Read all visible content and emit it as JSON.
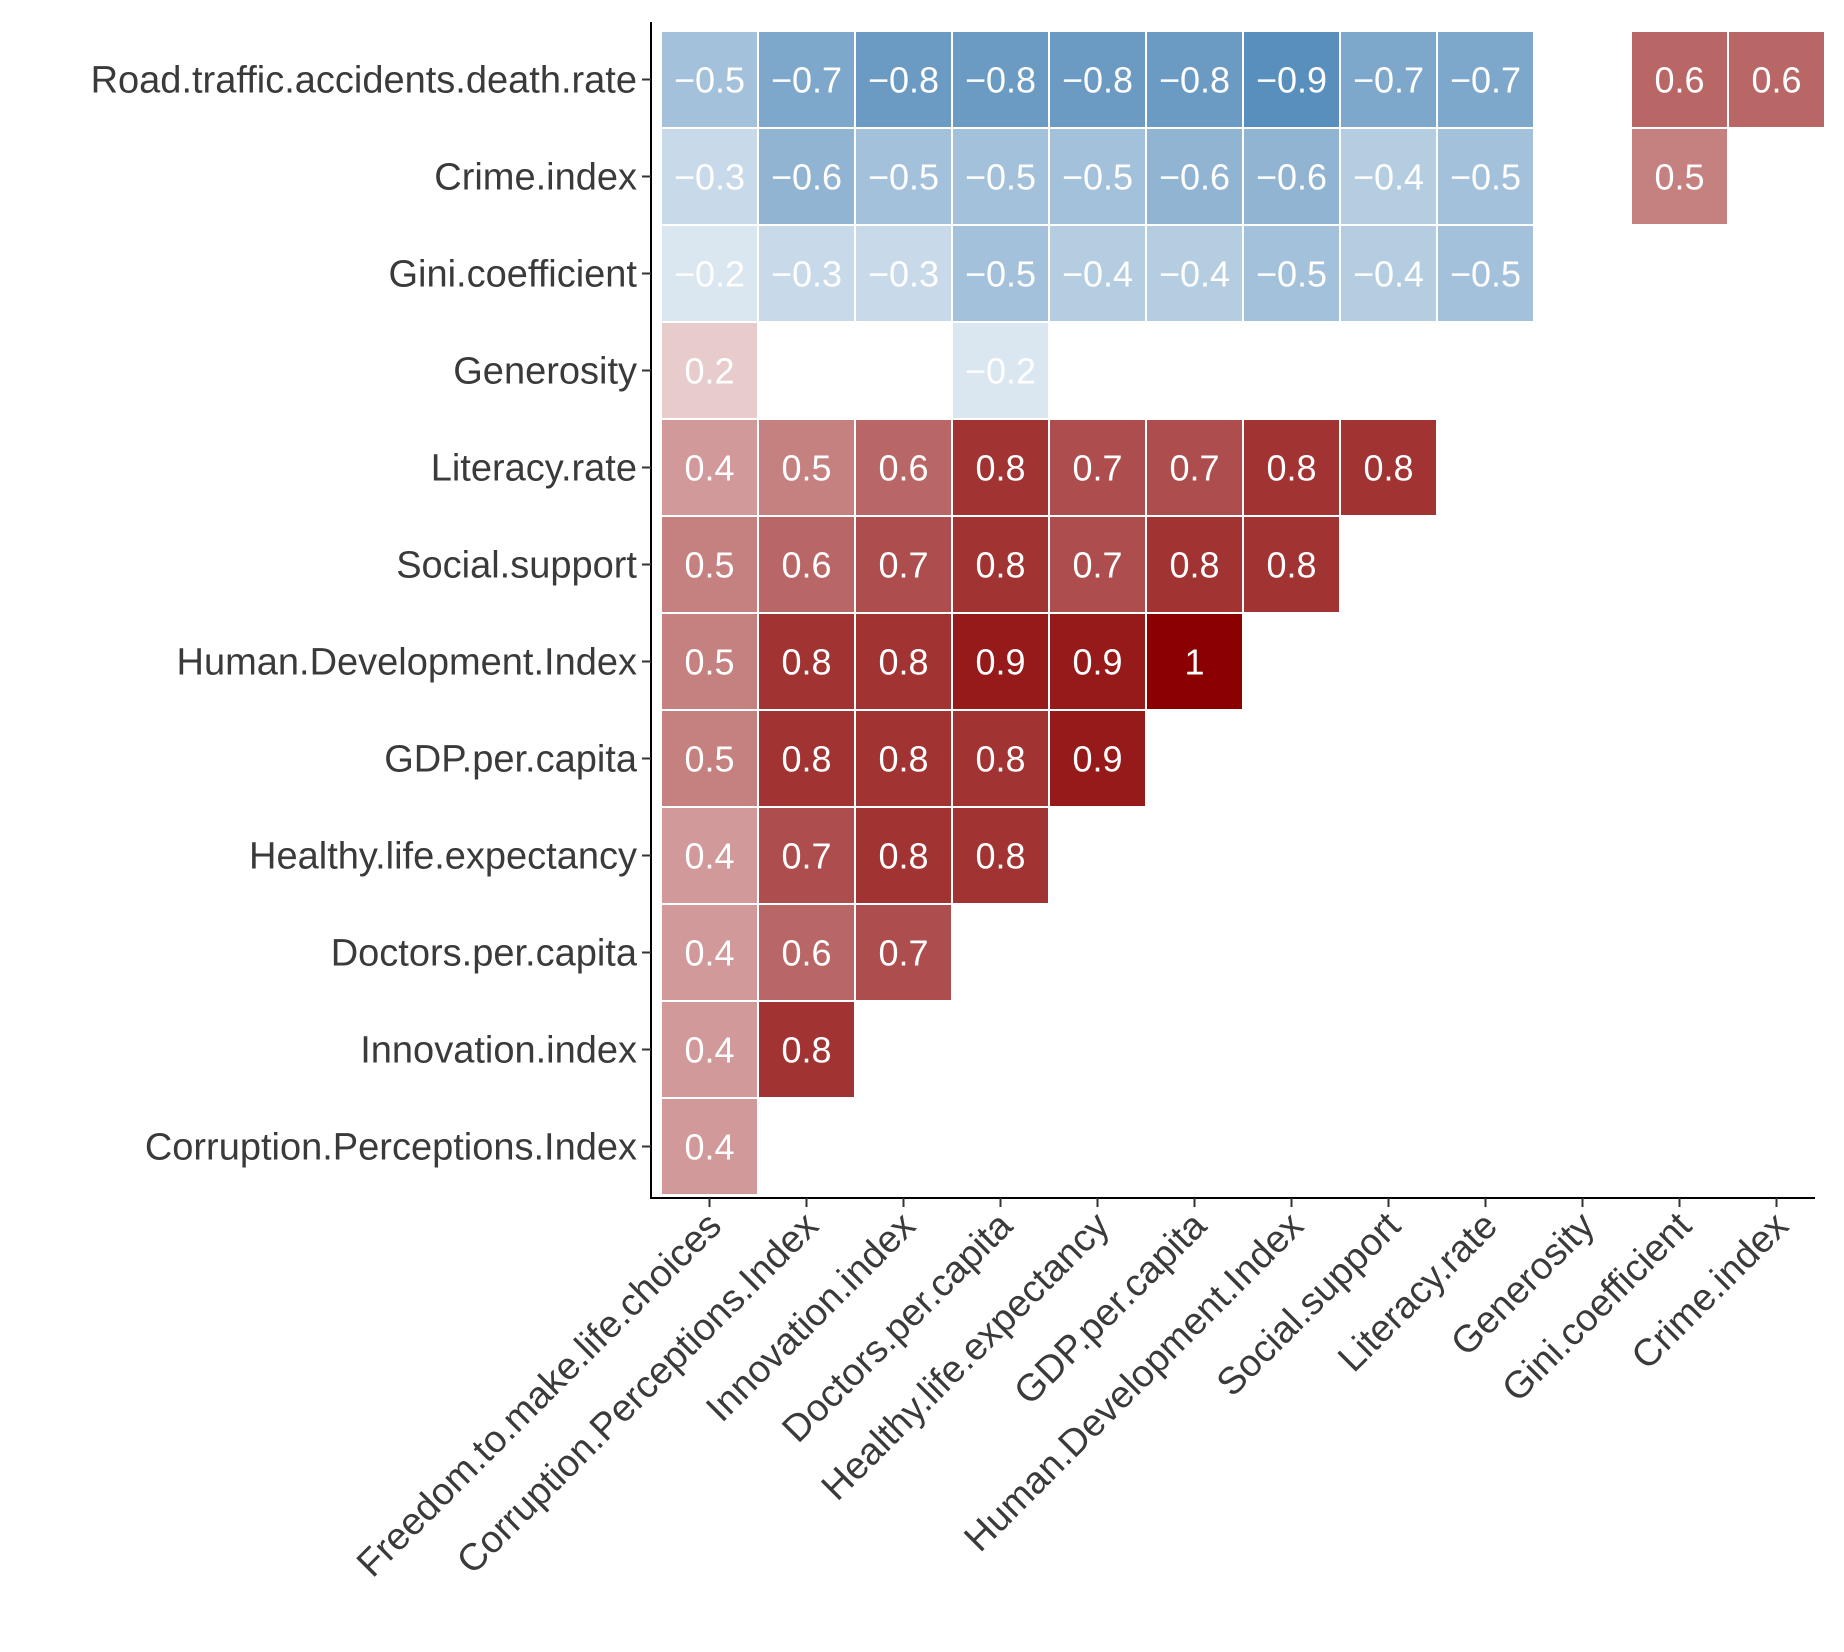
{
  "chart_data": {
    "type": "heatmap",
    "title": "",
    "xlabel": "",
    "ylabel": "",
    "x_categories": [
      "Freedom.to.make.life.choices",
      "Corruption.Perceptions.Index",
      "Innovation.index",
      "Doctors.per.capita",
      "Healthy.life.expectancy",
      "GDP.per.capita",
      "Human.Development.Index",
      "Social.support",
      "Literacy.rate",
      "Generosity",
      "Gini.coefficient",
      "Crime.index"
    ],
    "y_categories": [
      "Road.traffic.accidents.death.rate",
      "Crime.index",
      "Gini.coefficient",
      "Generosity",
      "Literacy.rate",
      "Social.support",
      "Human.Development.Index",
      "GDP.per.capita",
      "Healthy.life.expectancy",
      "Doctors.per.capita",
      "Innovation.index",
      "Corruption.Perceptions.Index"
    ],
    "value_range": [
      -1,
      1
    ],
    "color_scale": {
      "negative": "#4682b4",
      "zero": "#ffffff",
      "positive": "#8b0000"
    },
    "legend": "none",
    "values": [
      [
        -0.5,
        -0.7,
        -0.8,
        -0.8,
        -0.8,
        -0.8,
        -0.9,
        -0.7,
        -0.7,
        null,
        0.6,
        0.6
      ],
      [
        -0.3,
        -0.6,
        -0.5,
        -0.5,
        -0.5,
        -0.6,
        -0.6,
        -0.4,
        -0.5,
        null,
        0.5,
        null
      ],
      [
        -0.2,
        -0.3,
        -0.3,
        -0.5,
        -0.4,
        -0.4,
        -0.5,
        -0.4,
        -0.5,
        null,
        null,
        null
      ],
      [
        0.2,
        null,
        null,
        -0.2,
        null,
        null,
        null,
        null,
        null,
        null,
        null,
        null
      ],
      [
        0.4,
        0.5,
        0.6,
        0.8,
        0.7,
        0.7,
        0.8,
        0.8,
        null,
        null,
        null,
        null
      ],
      [
        0.5,
        0.6,
        0.7,
        0.8,
        0.7,
        0.8,
        0.8,
        null,
        null,
        null,
        null,
        null
      ],
      [
        0.5,
        0.8,
        0.8,
        0.9,
        0.9,
        1,
        null,
        null,
        null,
        null,
        null,
        null
      ],
      [
        0.5,
        0.8,
        0.8,
        0.8,
        0.9,
        null,
        null,
        null,
        null,
        null,
        null,
        null
      ],
      [
        0.4,
        0.7,
        0.8,
        0.8,
        null,
        null,
        null,
        null,
        null,
        null,
        null,
        null
      ],
      [
        0.4,
        0.6,
        0.7,
        null,
        null,
        null,
        null,
        null,
        null,
        null,
        null,
        null
      ],
      [
        0.4,
        0.8,
        null,
        null,
        null,
        null,
        null,
        null,
        null,
        null,
        null,
        null
      ],
      [
        0.4,
        null,
        null,
        null,
        null,
        null,
        null,
        null,
        null,
        null,
        null,
        null
      ]
    ]
  }
}
